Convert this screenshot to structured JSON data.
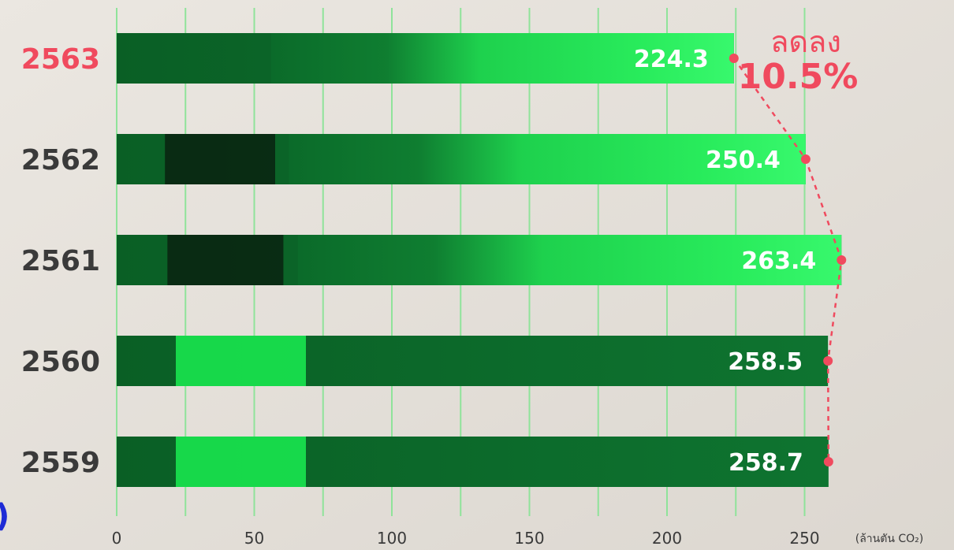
{
  "chart_data": {
    "type": "bar",
    "orientation": "horizontal",
    "categories": [
      "2563",
      "2562",
      "2561",
      "2560",
      "2559"
    ],
    "values": [
      224.3,
      250.4,
      263.4,
      258.5,
      258.7
    ],
    "value_labels": [
      "224.3",
      "250.4",
      "263.4",
      "258.5",
      "258.7"
    ],
    "highlight_category": "2563",
    "x_ticks": [
      "0",
      "50",
      "100",
      "150",
      "200",
      "250"
    ],
    "x_tick_values": [
      0,
      50,
      100,
      150,
      200,
      250
    ],
    "xlim": [
      0,
      250
    ],
    "unit_label": "(ล้านตัน CO₂)",
    "annotation": {
      "line1": "ลดลง",
      "line2": "10.5%"
    },
    "grid": true,
    "colors": {
      "bar_dark": "#0b6b2a",
      "bar_bright": "#22f25a",
      "highlight": "#f04a5e",
      "grid": "#8fe39a",
      "background": "#e6e2dc"
    }
  },
  "edge_glyph": ")"
}
